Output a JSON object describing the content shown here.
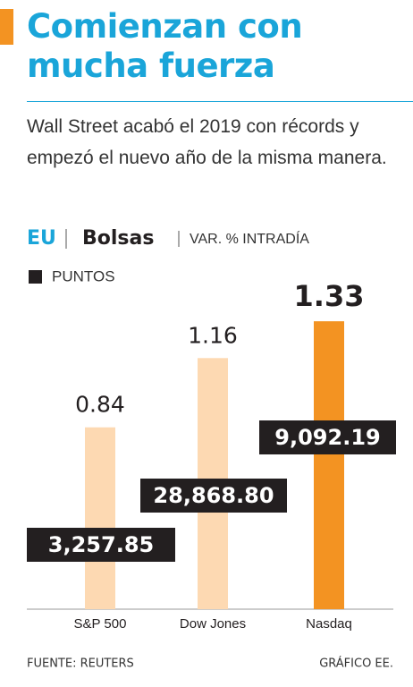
{
  "chart_data": {
    "type": "bar",
    "title": "Comienzan con mucha fuerza",
    "subtitle": "Wall Street acabó el 2019 con récords y empezó el nuevo año de la misma manera.",
    "region": "EU",
    "section": "Bolsas",
    "measure": "VAR. % INTRADÍA",
    "legend": "PUNTOS",
    "categories": [
      "S&P 500",
      "Dow Jones",
      "Nasdaq"
    ],
    "values": [
      0.84,
      1.16,
      1.33
    ],
    "colors": [
      "#fdd9b2",
      "#fdd9b2",
      "#f39322"
    ],
    "highlight_index": 2,
    "points": {
      "values": [
        3257.85,
        28868.8,
        9092.19
      ],
      "value_labels": [
        "3,257.85",
        "28,868.80",
        "9,092.19"
      ],
      "color": "#231f20"
    },
    "source": "FUENTE: REUTERS",
    "credit": "GRÁFICO EE."
  }
}
